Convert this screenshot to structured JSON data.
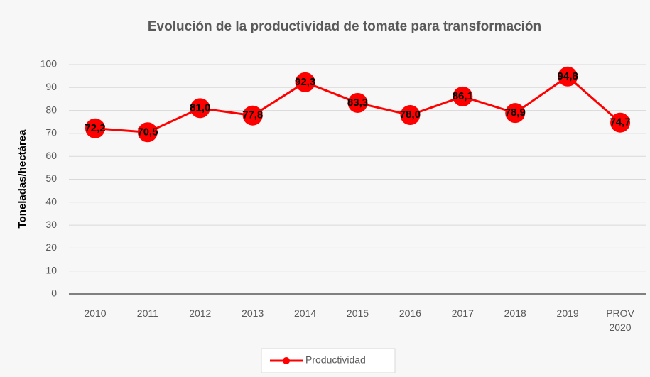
{
  "chart_data": {
    "type": "line",
    "title": "Evolución de la productividad de tomate para transformación",
    "y_label": "Toneladas/hectárea",
    "categories": [
      "2010",
      "2011",
      "2012",
      "2013",
      "2014",
      "2015",
      "2016",
      "2017",
      "2018",
      "2019",
      "PROV\n2020"
    ],
    "series": [
      {
        "name": "Productividad",
        "color": "#ff0000",
        "values": [
          72.2,
          70.5,
          81.0,
          77.8,
          92.3,
          83.3,
          78.0,
          86.1,
          78.9,
          94.8,
          74.7
        ],
        "value_labels": [
          "72,2",
          "70,5",
          "81,0",
          "77,8",
          "92,3",
          "83,3",
          "78,0",
          "86,1",
          "78,9",
          "94,8",
          "74,7"
        ]
      }
    ],
    "ylim": [
      0,
      100
    ],
    "yticks": [
      0,
      10,
      20,
      30,
      40,
      50,
      60,
      70,
      80,
      90,
      100
    ],
    "grid": true,
    "legend": "bottom"
  }
}
